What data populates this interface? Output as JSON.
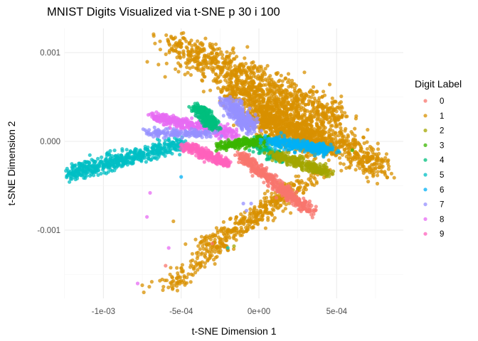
{
  "chart_data": {
    "type": "scatter",
    "title": "MNIST Digits Visualized via t-SNE p 30 i 100",
    "xlabel": "t-SNE Dimension 1",
    "ylabel": "t-SNE Dimension 2",
    "xlim": [
      -0.00126,
      0.00093
    ],
    "ylim": [
      -0.00184,
      0.00125
    ],
    "x_ticks": [
      {
        "value": -0.001,
        "label": "-1e-03"
      },
      {
        "value": -0.0005,
        "label": "-5e-04"
      },
      {
        "value": 0,
        "label": "0e+00"
      },
      {
        "value": 0.0005,
        "label": "5e-04"
      }
    ],
    "y_ticks": [
      {
        "value": 0.001,
        "label": "0.001"
      },
      {
        "value": 0,
        "label": "0.000"
      },
      {
        "value": -0.001,
        "label": "-0.001"
      }
    ],
    "grid": true,
    "legend": {
      "title": "Digit Label",
      "placement": "right",
      "entries": [
        {
          "label": "0",
          "color": "#F8766D"
        },
        {
          "label": "1",
          "color": "#D89000"
        },
        {
          "label": "2",
          "color": "#A3A500"
        },
        {
          "label": "3",
          "color": "#39B600"
        },
        {
          "label": "4",
          "color": "#00BF7D"
        },
        {
          "label": "5",
          "color": "#00BFC4"
        },
        {
          "label": "6",
          "color": "#00B0F6"
        },
        {
          "label": "7",
          "color": "#9590FF"
        },
        {
          "label": "8",
          "color": "#E76BF3"
        },
        {
          "label": "9",
          "color": "#FF62BC"
        }
      ]
    },
    "point_alpha": 0.75,
    "series": [
      {
        "name": "1",
        "clusters": [
          {
            "from": [
              -0.00056,
              0.0011
            ],
            "to": [
              0.0005,
              0.00025
            ],
            "spread": [
              0.00012,
              0.00016
            ],
            "n": 900
          },
          {
            "from": [
              -0.0002,
              0.0006
            ],
            "to": [
              0.00078,
              -0.00028
            ],
            "spread": [
              0.0001,
              0.00014
            ],
            "n": 900
          },
          {
            "from": [
              0.0,
              0.0003
            ],
            "to": [
              0.0004,
              -0.0001
            ],
            "spread": [
              0.00012,
              0.0001
            ],
            "n": 700
          },
          {
            "from": [
              -0.0006,
              -0.00165
            ],
            "to": [
              0.00025,
              -0.0005
            ],
            "spread": [
              7e-05,
              8e-05
            ],
            "n": 330
          },
          {
            "from": [
              -0.0004,
              -0.0012
            ],
            "to": [
              0.00045,
              -0.0003
            ],
            "spread": [
              6e-05,
              6e-05
            ],
            "n": 200
          }
        ]
      },
      {
        "name": "5",
        "clusters": [
          {
            "from": [
              -0.00125,
              -0.00038
            ],
            "to": [
              -0.00048,
              -2e-05
            ],
            "spread": [
              3e-05,
              8e-05
            ],
            "n": 550
          }
        ]
      },
      {
        "name": "8",
        "clusters": [
          {
            "from": [
              -0.00068,
              0.00028
            ],
            "to": [
              -0.00015,
              8e-05
            ],
            "spread": [
              4e-05,
              5e-05
            ],
            "n": 420
          }
        ]
      },
      {
        "name": "4",
        "clusters": [
          {
            "from": [
              -0.0004,
              0.0004
            ],
            "to": [
              -0.00028,
              0.00015
            ],
            "spread": [
              4e-05,
              4e-05
            ],
            "n": 260
          },
          {
            "from": [
              -5e-05,
              0.0
            ],
            "to": [
              0.00015,
              -0.0002
            ],
            "spread": [
              5e-05,
              5e-05
            ],
            "n": 120
          }
        ]
      },
      {
        "name": "7",
        "clusters": [
          {
            "from": [
              -0.0002,
              0.00045
            ],
            "to": [
              -5e-05,
              0.00015
            ],
            "spread": [
              5e-05,
              6e-05
            ],
            "n": 320
          },
          {
            "from": [
              -0.0007,
              0.0001
            ],
            "to": [
              -0.0003,
              8e-05
            ],
            "spread": [
              4e-05,
              4e-05
            ],
            "n": 150
          }
        ]
      },
      {
        "name": "9",
        "clusters": [
          {
            "from": [
              -0.00048,
              -5e-05
            ],
            "to": [
              -0.0002,
              -0.00025
            ],
            "spread": [
              4e-05,
              4e-05
            ],
            "n": 260
          }
        ]
      },
      {
        "name": "0",
        "clusters": [
          {
            "from": [
              -0.00012,
              -0.00015
            ],
            "to": [
              0.00033,
              -0.0008
            ],
            "spread": [
              4e-05,
              4e-05
            ],
            "n": 480
          }
        ]
      },
      {
        "name": "3",
        "clusters": [
          {
            "from": [
              -0.00025,
              -5e-05
            ],
            "to": [
              5e-05,
              2e-05
            ],
            "spread": [
              5e-05,
              4e-05
            ],
            "n": 260
          }
        ]
      },
      {
        "name": "6",
        "clusters": [
          {
            "from": [
              8e-05,
              0.0
            ],
            "to": [
              0.00045,
              -0.0001
            ],
            "spread": [
              6e-05,
              5e-05
            ],
            "n": 300
          }
        ]
      },
      {
        "name": "2",
        "clusters": [
          {
            "from": [
              0.0001,
              -0.00015
            ],
            "to": [
              0.00045,
              -0.00035
            ],
            "spread": [
              5e-05,
              4e-05
            ],
            "n": 300
          }
        ]
      }
    ],
    "outliers": [
      {
        "label": "8",
        "x": -0.00072,
        "y": -0.00085
      },
      {
        "label": "8",
        "x": -0.00058,
        "y": -0.0012
      },
      {
        "label": "8",
        "x": -0.00078,
        "y": -0.0016
      },
      {
        "label": "8",
        "x": -0.0007,
        "y": -0.00058
      },
      {
        "label": "0",
        "x": -0.0006,
        "y": -0.0014
      },
      {
        "label": "1",
        "x": -0.00055,
        "y": -0.0009
      },
      {
        "label": "1",
        "x": -0.00075,
        "y": -0.00162
      },
      {
        "label": "1",
        "x": -0.00074,
        "y": -0.0017
      },
      {
        "label": "7",
        "x": -0.0001,
        "y": -0.0007
      },
      {
        "label": "7",
        "x": -5e-05,
        "y": -0.0007
      },
      {
        "label": "7",
        "x": -8e-05,
        "y": -0.00078
      },
      {
        "label": "5",
        "x": -0.0002,
        "y": -0.0012
      },
      {
        "label": "2",
        "x": -0.00016,
        "y": -0.00118
      },
      {
        "label": "6",
        "x": -0.0005,
        "y": -0.0004
      },
      {
        "label": "3",
        "x": 0.0006,
        "y": -0.0001
      },
      {
        "label": "0",
        "x": -0.0003,
        "y": -0.00115
      }
    ]
  }
}
